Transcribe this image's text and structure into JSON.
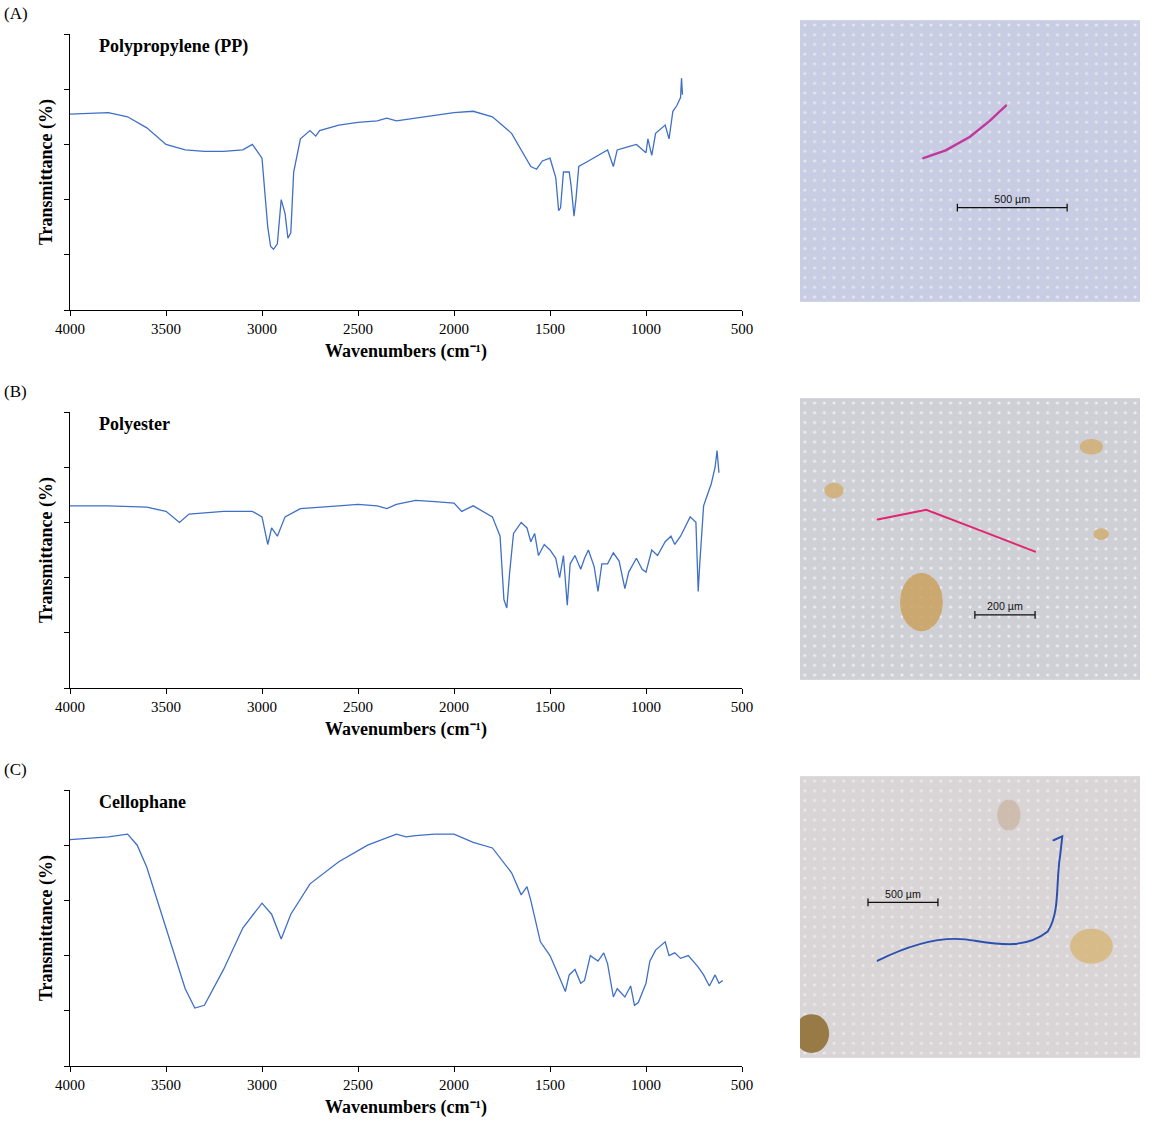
{
  "chart_data": [
    {
      "type": "line",
      "panel": "(A)",
      "title": "Polypropylene (PP)",
      "x_label": "Wavenumbers (cm⁻¹)",
      "y_label": "Transmittance (%)",
      "color": "#3f6fc6",
      "grid": false,
      "tick_labels": "x",
      "xlim": [
        4000,
        500
      ],
      "xticks": [
        4000,
        3500,
        3000,
        2500,
        2000,
        1500,
        1000,
        500
      ],
      "ylim": [
        0,
        100
      ],
      "yticks": [
        0,
        20,
        40,
        60,
        80,
        100
      ],
      "micrograph_scale_bar": "500 µm",
      "x": [
        4000,
        3800,
        3700,
        3600,
        3500,
        3400,
        3300,
        3200,
        3100,
        3050,
        3000,
        2970,
        2955,
        2940,
        2920,
        2900,
        2880,
        2865,
        2850,
        2835,
        2800,
        2750,
        2720,
        2700,
        2600,
        2500,
        2400,
        2350,
        2300,
        2200,
        2100,
        2000,
        1900,
        1800,
        1700,
        1650,
        1600,
        1570,
        1540,
        1500,
        1470,
        1455,
        1445,
        1430,
        1400,
        1390,
        1375,
        1365,
        1350,
        1300,
        1250,
        1200,
        1170,
        1150,
        1100,
        1050,
        1000,
        990,
        970,
        950,
        900,
        880,
        860,
        840,
        820,
        815,
        810
      ],
      "values": [
        71,
        71.5,
        70,
        66,
        60,
        58,
        57.5,
        57.5,
        58,
        60,
        55,
        30,
        23,
        22,
        24,
        40,
        35,
        26,
        28,
        50,
        62,
        65,
        63,
        65,
        67,
        68,
        68.5,
        69.5,
        68.5,
        69.5,
        70.5,
        71.5,
        72,
        70,
        64,
        58,
        52,
        51,
        54,
        55,
        48,
        36,
        37,
        50,
        50,
        45,
        34,
        40,
        52,
        54,
        56,
        58,
        52,
        58,
        59,
        60,
        57,
        62,
        56,
        64,
        67,
        62,
        72,
        74,
        77,
        84,
        78
      ]
    },
    {
      "type": "line",
      "panel": "(B)",
      "title": "Polyester",
      "x_label": "Wavenumbers (cm⁻¹)",
      "y_label": "Transmittance (%)",
      "color": "#3f6fc6",
      "grid": false,
      "tick_labels": "x",
      "xlim": [
        4000,
        500
      ],
      "xticks": [
        4000,
        3500,
        3000,
        2500,
        2000,
        1500,
        1000,
        500
      ],
      "ylim": [
        0,
        100
      ],
      "yticks": [
        0,
        20,
        40,
        60,
        80,
        100
      ],
      "micrograph_scale_bar": "200 µm",
      "x": [
        4000,
        3800,
        3600,
        3500,
        3430,
        3380,
        3200,
        3050,
        3000,
        2970,
        2950,
        2920,
        2880,
        2800,
        2600,
        2500,
        2400,
        2350,
        2300,
        2200,
        2100,
        2000,
        1960,
        1900,
        1800,
        1760,
        1740,
        1725,
        1710,
        1690,
        1650,
        1620,
        1600,
        1580,
        1560,
        1530,
        1500,
        1470,
        1450,
        1430,
        1410,
        1395,
        1370,
        1340,
        1320,
        1300,
        1270,
        1250,
        1230,
        1200,
        1170,
        1140,
        1110,
        1090,
        1050,
        1020,
        1000,
        970,
        940,
        900,
        870,
        850,
        820,
        800,
        770,
        740,
        728,
        720,
        700,
        680,
        660,
        640,
        630,
        620
      ],
      "values": [
        66,
        66,
        65.5,
        64,
        60,
        63,
        64,
        64,
        62,
        52,
        58,
        55,
        62,
        65,
        66,
        66.5,
        66,
        65,
        66.5,
        68,
        67.5,
        67,
        64,
        66,
        62,
        55,
        32,
        29,
        42,
        56,
        60,
        58,
        53,
        56,
        48,
        52,
        50,
        47,
        40,
        48,
        30,
        45,
        48,
        43,
        47,
        50,
        44,
        35,
        45,
        45,
        49,
        46,
        36,
        42,
        47,
        43,
        42,
        50,
        48,
        53,
        55,
        52,
        55,
        58,
        62,
        60,
        35,
        45,
        66,
        70,
        74,
        80,
        86,
        78
      ]
    },
    {
      "type": "line",
      "panel": "(C)",
      "title": "Cellophane",
      "x_label": "Wavenumbers (cm⁻¹)",
      "y_label": "Transmittance (%)",
      "color": "#3f6fc6",
      "grid": false,
      "tick_labels": "x",
      "xlim": [
        4000,
        500
      ],
      "xticks": [
        4000,
        3500,
        3000,
        2500,
        2000,
        1500,
        1000,
        500
      ],
      "ylim": [
        0,
        100
      ],
      "yticks": [
        0,
        20,
        40,
        60,
        80,
        100
      ],
      "micrograph_scale_bar": "500 µm",
      "x": [
        4000,
        3800,
        3700,
        3650,
        3600,
        3500,
        3400,
        3350,
        3300,
        3200,
        3100,
        3000,
        2950,
        2900,
        2850,
        2750,
        2600,
        2450,
        2300,
        2250,
        2200,
        2100,
        2000,
        1900,
        1800,
        1700,
        1650,
        1620,
        1600,
        1550,
        1500,
        1450,
        1420,
        1400,
        1370,
        1340,
        1320,
        1290,
        1250,
        1220,
        1200,
        1170,
        1150,
        1110,
        1080,
        1060,
        1040,
        1000,
        980,
        950,
        920,
        900,
        880,
        850,
        820,
        780,
        730,
        700,
        670,
        640,
        620,
        600
      ],
      "values": [
        82,
        83,
        84,
        80,
        72,
        50,
        28,
        21,
        22,
        35,
        50,
        59,
        55,
        46,
        55,
        66,
        74,
        80,
        84,
        83,
        83.5,
        84,
        84,
        81,
        79,
        70,
        62,
        65,
        60,
        45,
        40,
        32,
        27,
        33,
        35,
        30,
        31,
        40,
        38,
        41,
        37,
        25,
        28,
        25,
        29,
        22,
        23,
        30,
        38,
        42,
        44,
        45,
        40,
        41,
        39,
        40,
        36,
        33,
        29,
        33,
        30,
        31
      ]
    }
  ]
}
